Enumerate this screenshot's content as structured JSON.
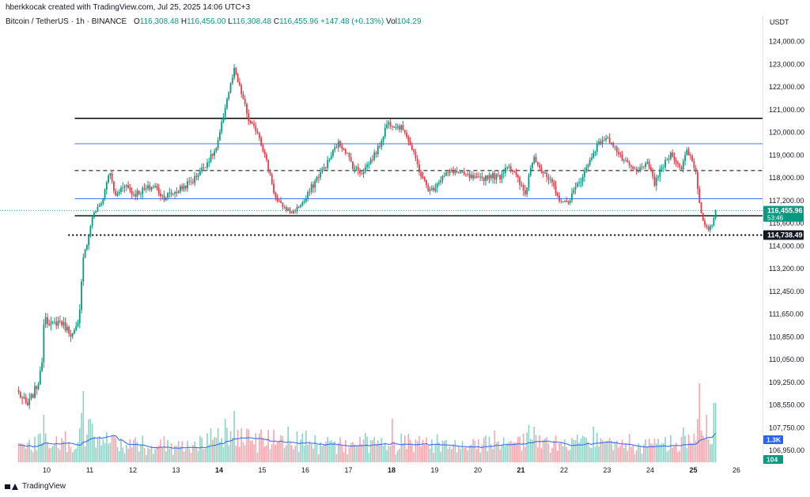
{
  "header": {
    "attribution": "hberkkocak created with TradingView.com, Jul 25, 2025 14:06 UTC+3"
  },
  "symbol": {
    "name": "Bitcoin / TetherUS · 1h · BINANCE",
    "open_label": "O",
    "open": "116,308.48",
    "high_label": "H",
    "high": "116,456.00",
    "low_label": "L",
    "low": "116,308.48",
    "close_label": "C",
    "close": "116,455.96",
    "change": "+147.48 (+0.13%)",
    "volume_label": "Vol",
    "volume": "104.29"
  },
  "axis": {
    "currency": "USDT"
  },
  "footer": {
    "brand": "TradingView"
  },
  "colors": {
    "up": "#089981",
    "down": "#f23645",
    "volume_ma": "#2962ff",
    "price_tag": "#089981",
    "level_tag": "#131722"
  },
  "chart_data": {
    "type": "candlestick",
    "title": "",
    "xlabel": "",
    "ylabel": "",
    "x_ticks": [
      {
        "label": "10",
        "bold": false
      },
      {
        "label": "11",
        "bold": false
      },
      {
        "label": "12",
        "bold": false
      },
      {
        "label": "13",
        "bold": false
      },
      {
        "label": "14",
        "bold": true
      },
      {
        "label": "15",
        "bold": false
      },
      {
        "label": "16",
        "bold": false
      },
      {
        "label": "17",
        "bold": false
      },
      {
        "label": "18",
        "bold": true
      },
      {
        "label": "19",
        "bold": false
      },
      {
        "label": "20",
        "bold": false
      },
      {
        "label": "21",
        "bold": true
      },
      {
        "label": "22",
        "bold": false
      },
      {
        "label": "23",
        "bold": false
      },
      {
        "label": "24",
        "bold": false
      },
      {
        "label": "25",
        "bold": true
      },
      {
        "label": "26",
        "bold": false
      }
    ],
    "y_ticks": [
      {
        "value": 124000,
        "label": "124,000.00"
      },
      {
        "value": 123000,
        "label": "123,000.00"
      },
      {
        "value": 122000,
        "label": "122,000.00"
      },
      {
        "value": 121000,
        "label": "121,000.00"
      },
      {
        "value": 120000,
        "label": "120,000.00"
      },
      {
        "value": 119000,
        "label": "119,000.00"
      },
      {
        "value": 118000,
        "label": "118,000.00"
      },
      {
        "value": 117200,
        "label": "117,200.00"
      },
      {
        "value": 115600,
        "label": "115,600.00"
      },
      {
        "value": 114000,
        "label": "114,000.00"
      },
      {
        "value": 113200,
        "label": "113,200.00"
      },
      {
        "value": 112450,
        "label": "112,450.00"
      },
      {
        "value": 111650,
        "label": "111,650.00"
      },
      {
        "value": 110850,
        "label": "110,850.00"
      },
      {
        "value": 110050,
        "label": "110,050.00"
      },
      {
        "value": 109250,
        "label": "109,250.00"
      },
      {
        "value": 108550,
        "label": "108,550.00"
      },
      {
        "value": 107750,
        "label": "107,750.00"
      },
      {
        "value": 106950,
        "label": "106,950.00"
      }
    ],
    "price_tags": [
      {
        "value": 116455.96,
        "label": "116,455.96",
        "sub": "53:46",
        "kind": "last"
      },
      {
        "value": 114738.49,
        "label": "114,738.49",
        "kind": "level"
      }
    ],
    "volume_tags": [
      {
        "label": "1.3K",
        "kind": "ma"
      },
      {
        "label": "104",
        "kind": "vol"
      }
    ],
    "levels": [
      {
        "price": 120600,
        "style": "solid",
        "color": "#000000",
        "from_day": 10.65
      },
      {
        "price": 119480,
        "style": "solid",
        "color": "#2962ff",
        "from_day": 10.65
      },
      {
        "price": 118300,
        "style": "dashed",
        "color": "#000000",
        "from_day": 10.65
      },
      {
        "price": 117250,
        "style": "solid",
        "color": "#2962ff",
        "from_day": 10.65
      },
      {
        "price": 116100,
        "style": "solid",
        "color": "#000000",
        "from_day": 10.65
      },
      {
        "price": 114738.49,
        "style": "dotted",
        "color": "#000000",
        "from_day": 10.5
      }
    ],
    "last_price_line": 116455.96,
    "anchors": [
      [
        9.35,
        108900
      ],
      [
        9.55,
        108500
      ],
      [
        9.8,
        109200
      ],
      [
        9.88,
        109700
      ],
      [
        9.95,
        111800
      ],
      [
        10.05,
        111200
      ],
      [
        10.3,
        111400
      ],
      [
        10.6,
        110900
      ],
      [
        10.75,
        111300
      ],
      [
        10.85,
        113700
      ],
      [
        10.95,
        114200
      ],
      [
        11.05,
        116000
      ],
      [
        11.3,
        117200
      ],
      [
        11.45,
        118250
      ],
      [
        11.6,
        117300
      ],
      [
        11.8,
        117800
      ],
      [
        12.0,
        117400
      ],
      [
        12.5,
        117700
      ],
      [
        12.7,
        117300
      ],
      [
        13.0,
        117500
      ],
      [
        13.4,
        117900
      ],
      [
        13.7,
        118600
      ],
      [
        13.95,
        119300
      ],
      [
        14.15,
        121200
      ],
      [
        14.35,
        122700
      ],
      [
        14.55,
        121500
      ],
      [
        14.7,
        120400
      ],
      [
        14.9,
        120000
      ],
      [
        15.1,
        118700
      ],
      [
        15.3,
        117300
      ],
      [
        15.5,
        116700
      ],
      [
        15.7,
        116300
      ],
      [
        15.9,
        116900
      ],
      [
        16.2,
        117800
      ],
      [
        16.5,
        118600
      ],
      [
        16.75,
        119500
      ],
      [
        16.9,
        119300
      ],
      [
        17.1,
        118500
      ],
      [
        17.3,
        118200
      ],
      [
        17.5,
        118700
      ],
      [
        17.7,
        119300
      ],
      [
        17.9,
        120400
      ],
      [
        18.1,
        120300
      ],
      [
        18.3,
        120100
      ],
      [
        18.5,
        119100
      ],
      [
        18.7,
        118000
      ],
      [
        18.9,
        117500
      ],
      [
        19.1,
        117900
      ],
      [
        19.4,
        118300
      ],
      [
        19.7,
        118100
      ],
      [
        20.0,
        117900
      ],
      [
        20.3,
        118100
      ],
      [
        20.5,
        118000
      ],
      [
        20.7,
        118600
      ],
      [
        20.9,
        118000
      ],
      [
        21.1,
        117400
      ],
      [
        21.3,
        119000
      ],
      [
        21.5,
        118200
      ],
      [
        21.7,
        117800
      ],
      [
        21.85,
        117300
      ],
      [
        22.05,
        117000
      ],
      [
        22.3,
        117700
      ],
      [
        22.5,
        118300
      ],
      [
        22.7,
        119200
      ],
      [
        22.9,
        119700
      ],
      [
        23.1,
        119600
      ],
      [
        23.3,
        118900
      ],
      [
        23.5,
        118500
      ],
      [
        23.7,
        118200
      ],
      [
        23.9,
        118700
      ],
      [
        24.1,
        117800
      ],
      [
        24.3,
        118500
      ],
      [
        24.5,
        119100
      ],
      [
        24.7,
        118300
      ],
      [
        24.85,
        119200
      ],
      [
        24.95,
        118900
      ],
      [
        25.05,
        118300
      ],
      [
        25.15,
        117000
      ],
      [
        25.22,
        115700
      ],
      [
        25.35,
        115000
      ],
      [
        25.45,
        115600
      ],
      [
        25.55,
        116456
      ]
    ],
    "volume_spikes": [
      [
        9.92,
        60
      ],
      [
        10.85,
        90
      ],
      [
        11.0,
        55
      ],
      [
        14.15,
        55
      ],
      [
        14.35,
        65
      ],
      [
        15.6,
        45
      ],
      [
        16.0,
        40
      ],
      [
        18.0,
        55
      ],
      [
        21.3,
        45
      ],
      [
        22.7,
        45
      ],
      [
        24.1,
        30
      ],
      [
        25.15,
        100
      ],
      [
        25.3,
        60
      ],
      [
        25.5,
        75
      ]
    ],
    "y_range": [
      106500,
      124700
    ],
    "x_range": [
      9.0,
      26.45
    ],
    "candles_per_day": 24
  }
}
